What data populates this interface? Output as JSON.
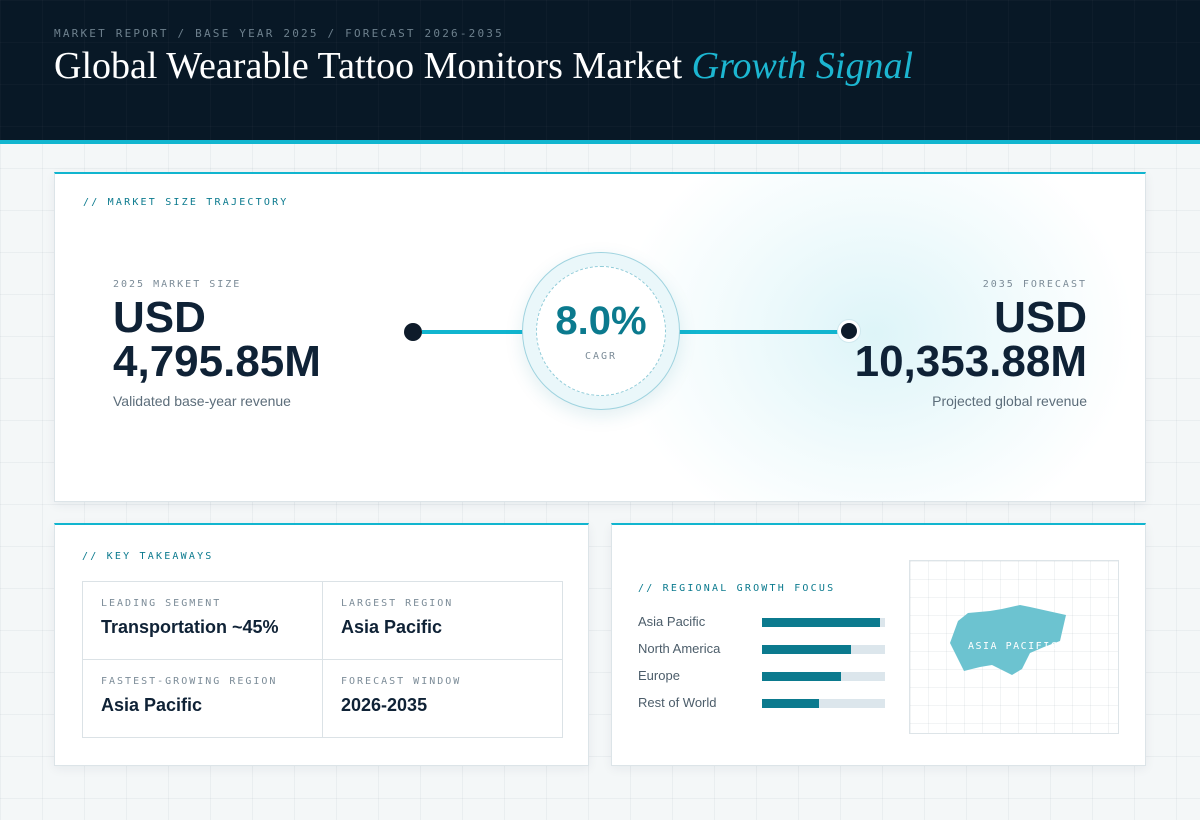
{
  "header": {
    "eyebrow": "MARKET REPORT / BASE YEAR 2025 / FORECAST 2026-2035",
    "title_main": "Global Wearable Tattoo Monitors Market",
    "title_accent": "Growth Signal"
  },
  "trajectory": {
    "section_label": "// MARKET SIZE TRAJECTORY",
    "start": {
      "label": "2025 MARKET SIZE",
      "currency": "USD",
      "value": "4,795.85M",
      "note": "Validated base-year revenue"
    },
    "cagr": {
      "value": "8.0%",
      "label": "CAGR"
    },
    "end": {
      "label": "2035 FORECAST",
      "currency": "USD",
      "value": "10,353.88M",
      "note": "Projected global revenue"
    }
  },
  "takeaways": {
    "section_label": "// KEY TAKEAWAYS",
    "items": [
      {
        "label": "LEADING SEGMENT",
        "value": "Transportation ~45%"
      },
      {
        "label": "LARGEST REGION",
        "value": "Asia Pacific"
      },
      {
        "label": "FASTEST-GROWING REGION",
        "value": "Asia Pacific"
      },
      {
        "label": "FORECAST WINDOW",
        "value": "2026-2035"
      }
    ]
  },
  "regional": {
    "section_label": "// REGIONAL GROWTH FOCUS",
    "bars": [
      {
        "name": "Asia Pacific",
        "level": 0.96
      },
      {
        "name": "North America",
        "level": 0.72
      },
      {
        "name": "Europe",
        "level": 0.64
      },
      {
        "name": "Rest of World",
        "level": 0.46
      }
    ],
    "map_label": "ASIA PACIFIC"
  },
  "colors": {
    "accent": "#11b5cf",
    "bar_fill": "#0b7a8e",
    "header_bg": "#081826",
    "map_shape": "#6cc3d0"
  }
}
